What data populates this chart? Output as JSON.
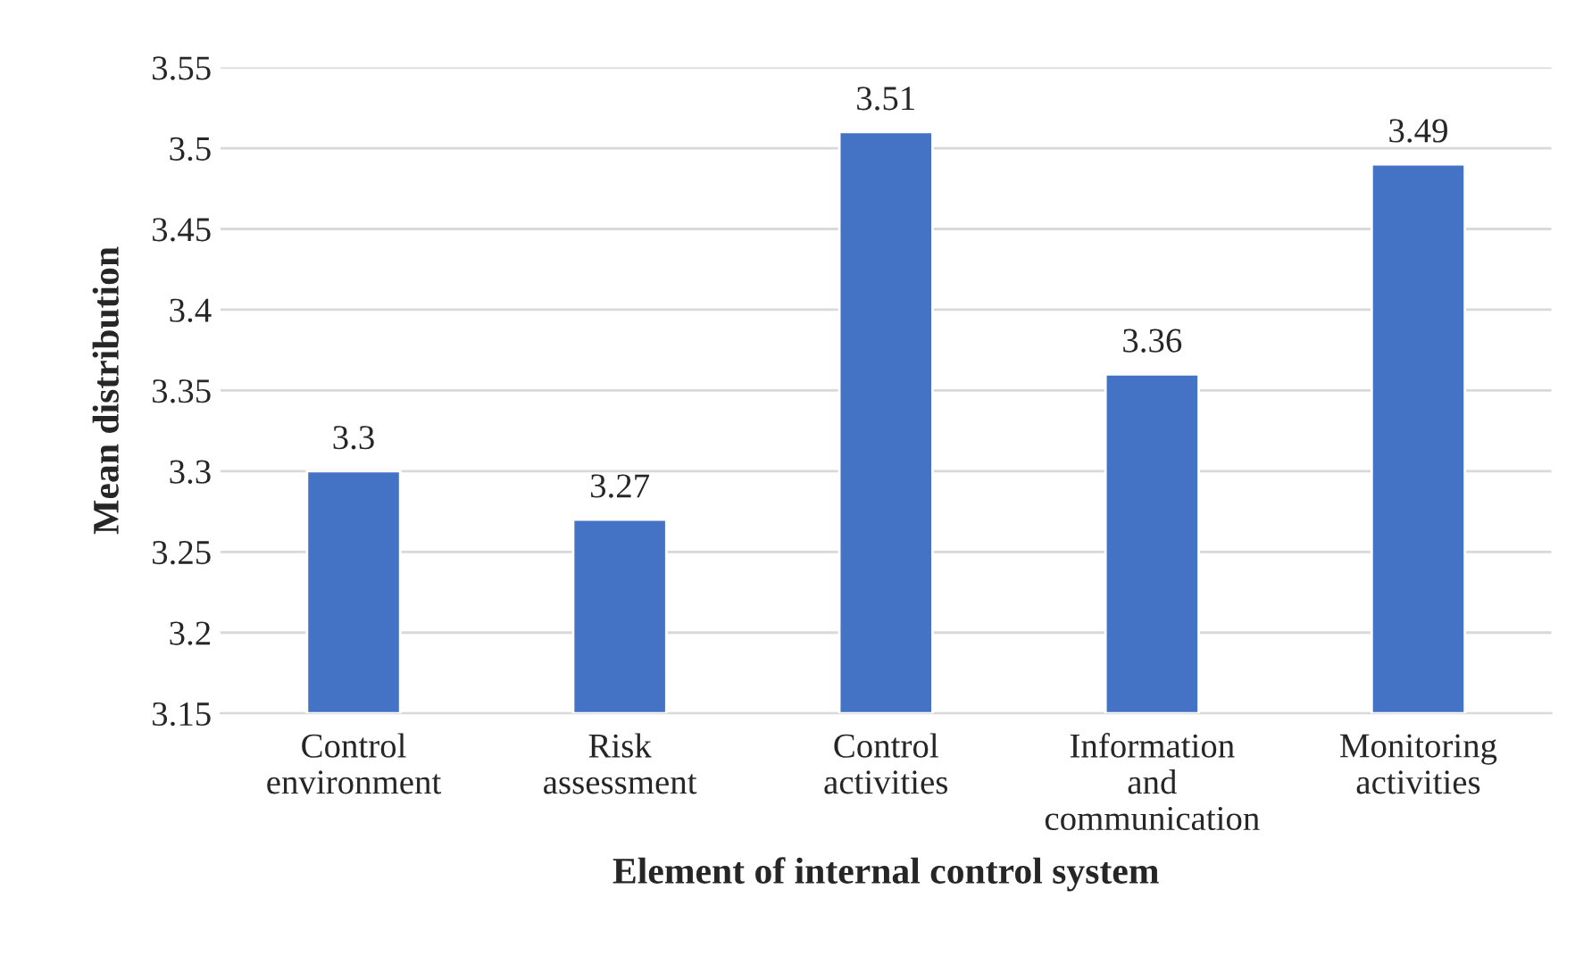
{
  "chart_data": {
    "type": "bar",
    "xlabel": "Element of internal control system",
    "ylabel": "Mean distribution",
    "categories": [
      "Control\nenvironment",
      "Risk\nassessment",
      "Control\nactivities",
      "Information\nand\ncommunication",
      "Monitoring\nactivities"
    ],
    "values": [
      3.3,
      3.27,
      3.51,
      3.36,
      3.49
    ],
    "color": "#4472c4",
    "ylim": [
      3.15,
      3.55
    ],
    "yticks": [
      3.15,
      3.2,
      3.25,
      3.3,
      3.35,
      3.4,
      3.45,
      3.5,
      3.55
    ],
    "grid": "y",
    "data_labels": true
  }
}
